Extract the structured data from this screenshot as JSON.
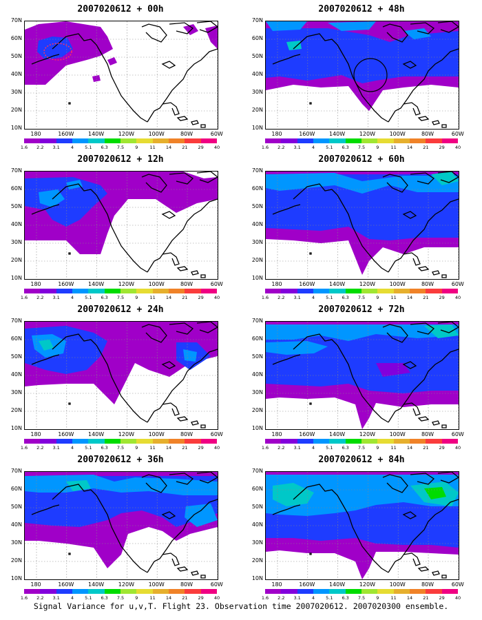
{
  "footer_text": "Signal Variance for u,v,T. Flight 23. Observation time 2007020612. 2007020300 ensemble.",
  "y_labels": [
    "70N",
    "60N",
    "50N",
    "40N",
    "30N",
    "20N",
    "10N"
  ],
  "x_labels": [
    "180",
    "160W",
    "140W",
    "120W",
    "100W",
    "80W",
    "60W"
  ],
  "colorbar": {
    "colors": [
      "#a000c8",
      "#8200dc",
      "#1e3cff",
      "#0096ff",
      "#00c8c8",
      "#00dc00",
      "#a0e632",
      "#e6dc32",
      "#e6af2d",
      "#f08228",
      "#fa3c3c",
      "#f00082"
    ],
    "labels": [
      "1.6",
      "2.2",
      "3.1",
      "4",
      "5.1",
      "6.3",
      "7.5",
      "9",
      "11",
      "14",
      "21",
      "29",
      "40"
    ]
  },
  "panels": [
    {
      "title": "2007020612 + 00h"
    },
    {
      "title": "2007020612 + 48h"
    },
    {
      "title": "2007020612 + 12h"
    },
    {
      "title": "2007020612 + 60h"
    },
    {
      "title": "2007020612 + 24h"
    },
    {
      "title": "2007020612 + 72h"
    },
    {
      "title": "2007020612 + 36h"
    },
    {
      "title": "2007020612 + 84h"
    }
  ]
}
